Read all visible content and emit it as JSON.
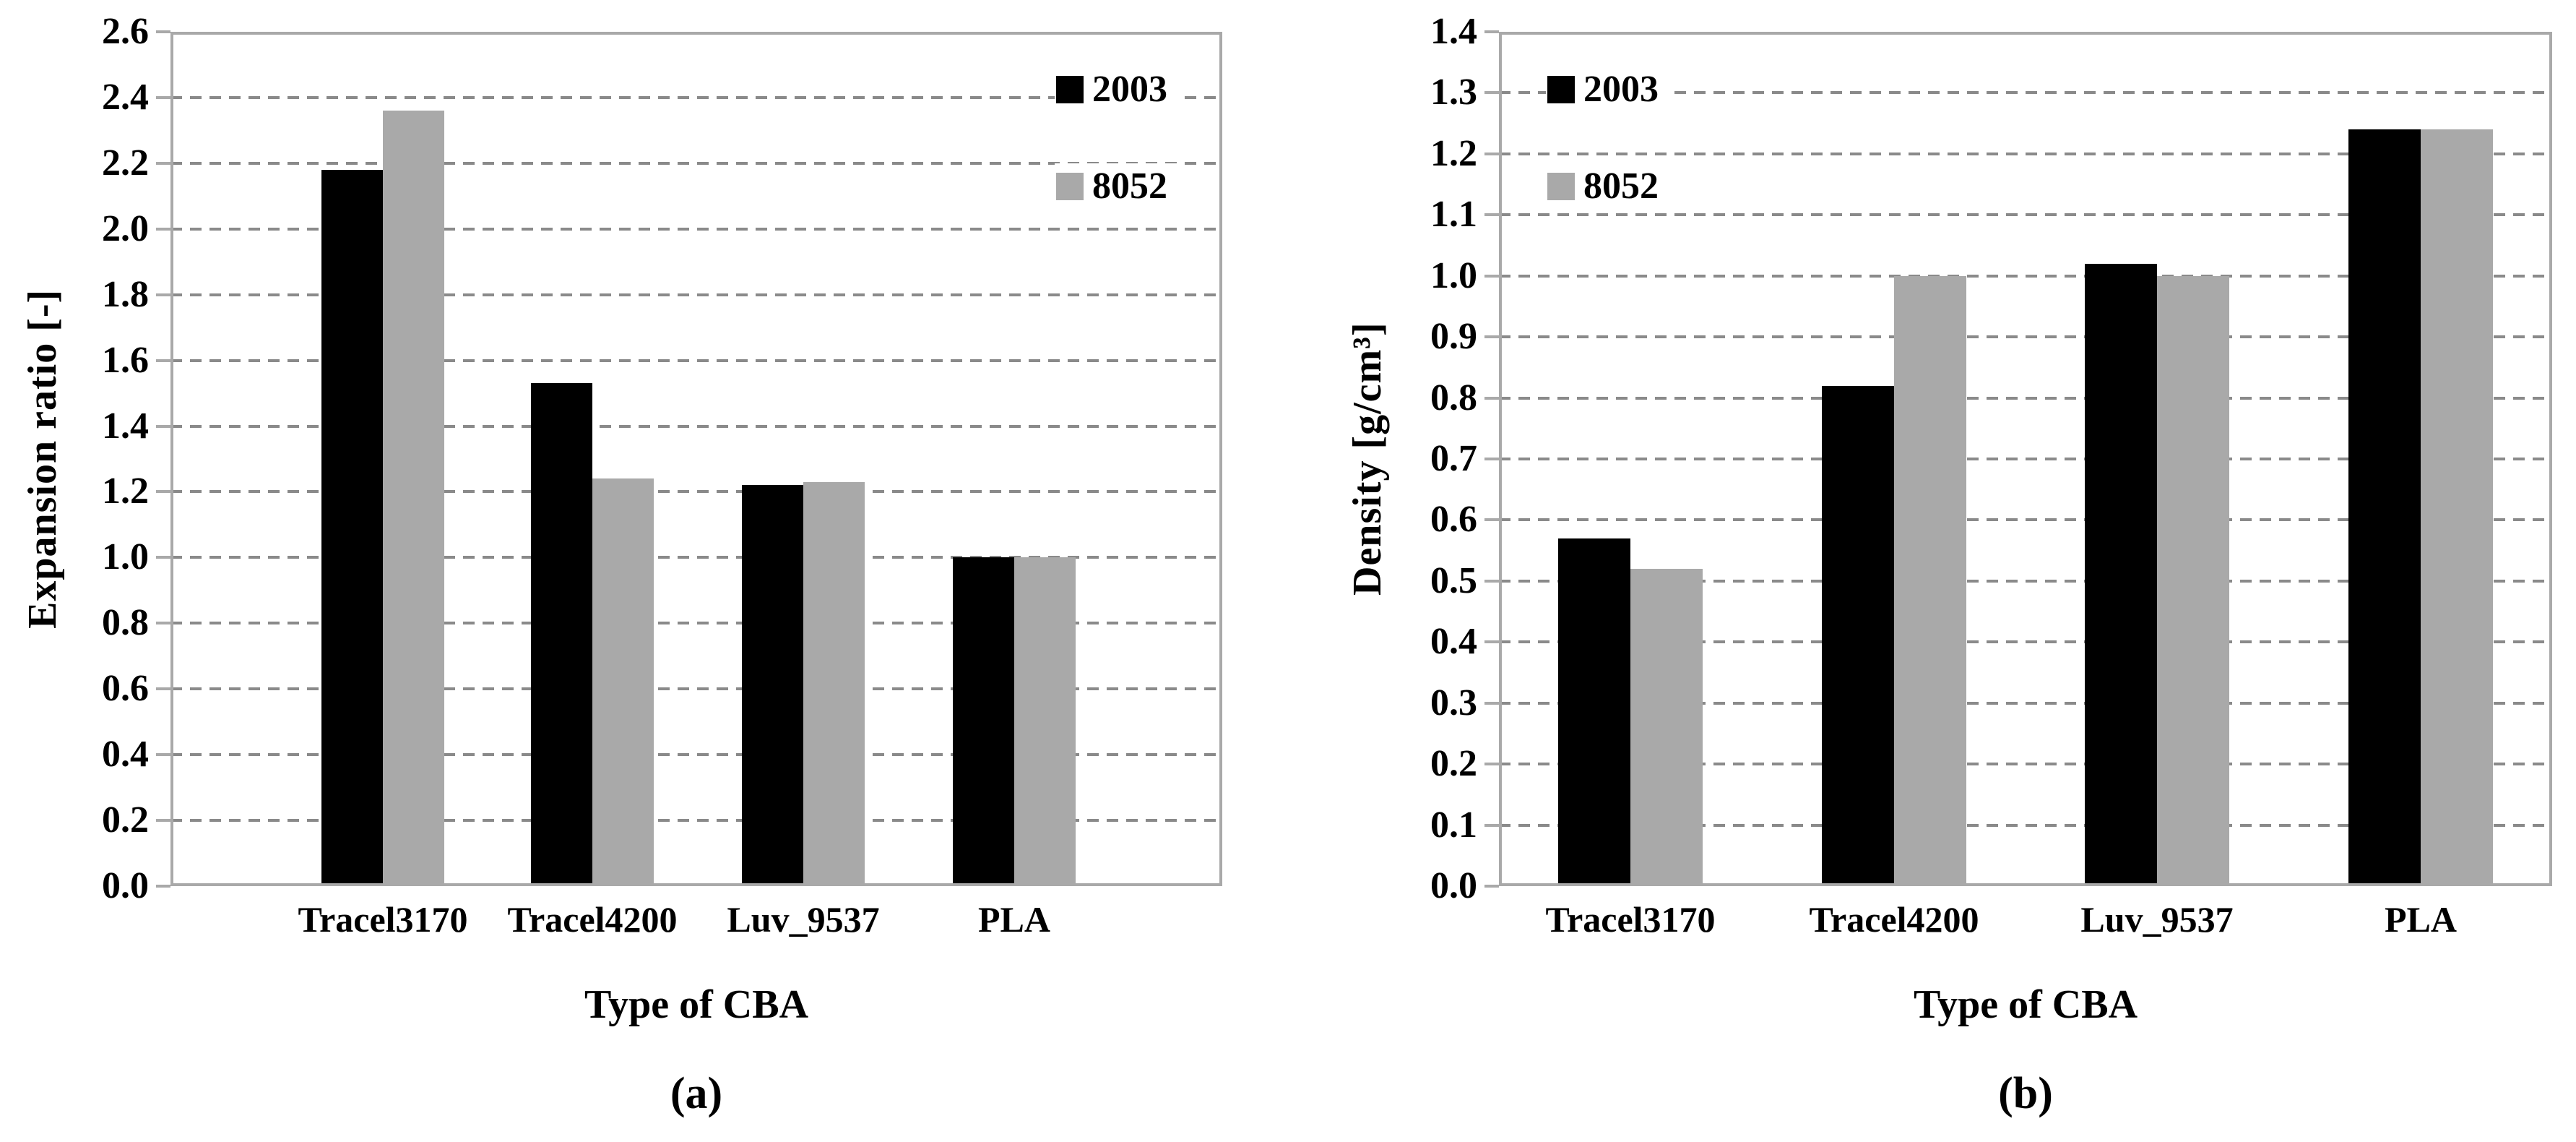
{
  "figure": {
    "background": "#ffffff",
    "frame_color": "#a9a9a9",
    "grid_color": "#8a8a8a",
    "text_color": "#000000",
    "series_colors": {
      "2003": "#000000",
      "8052": "#a9a9a9"
    }
  },
  "chart_data": [
    {
      "type": "bar",
      "caption": "(a)",
      "ylabel": "Expansion ratio [-]",
      "xlabel": "Type of CBA",
      "categories": [
        "Tracel3170",
        "Tracel4200",
        "Luv_9537",
        "PLA"
      ],
      "series": [
        {
          "name": "2003",
          "color": "#000000",
          "values": [
            2.18,
            1.53,
            1.22,
            1.0
          ]
        },
        {
          "name": "8052",
          "color": "#a9a9a9",
          "values": [
            2.36,
            1.24,
            1.23,
            1.0
          ]
        }
      ],
      "ylim": [
        0,
        2.6
      ],
      "ytick_step": 0.2,
      "ytick_decimals": 1,
      "grid": true,
      "legend_position": "top-right",
      "legend_entries": [
        "2003",
        "8052"
      ]
    },
    {
      "type": "bar",
      "caption": "(b)",
      "ylabel": "Density [g/cm³]",
      "xlabel": "Type of CBA",
      "categories": [
        "Tracel3170",
        "Tracel4200",
        "Luv_9537",
        "PLA"
      ],
      "series": [
        {
          "name": "2003",
          "color": "#000000",
          "values": [
            0.57,
            0.82,
            1.02,
            1.24
          ]
        },
        {
          "name": "8052",
          "color": "#a9a9a9",
          "values": [
            0.52,
            1.0,
            1.0,
            1.24
          ]
        }
      ],
      "ylim": [
        0,
        1.4
      ],
      "ytick_step": 0.1,
      "ytick_decimals": 1,
      "grid": true,
      "legend_position": "top-left",
      "legend_entries": [
        "2003",
        "8052"
      ]
    }
  ]
}
